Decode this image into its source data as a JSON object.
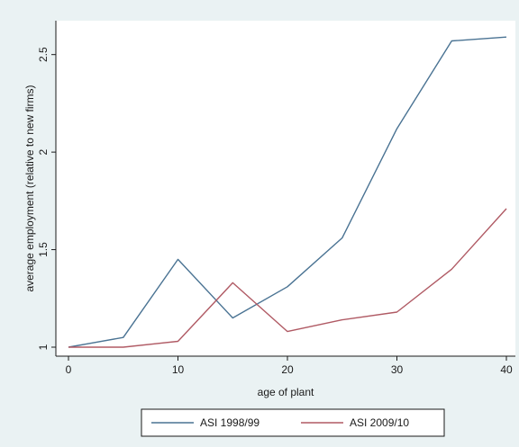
{
  "chart_data": {
    "type": "line",
    "title": "",
    "xlabel": "age of plant",
    "ylabel": "average employment (relative to new firms)",
    "xlim": [
      0,
      40
    ],
    "ylim": [
      1,
      2.6
    ],
    "xticks": [
      0,
      10,
      20,
      30,
      40
    ],
    "yticks": [
      1,
      1.5,
      2,
      2.5
    ],
    "ytick_labels": [
      "1",
      "1.5",
      "2",
      "2.5"
    ],
    "grid": false,
    "legend_position": "bottom",
    "x": [
      0,
      5,
      10,
      15,
      20,
      25,
      30,
      35,
      40
    ],
    "series": [
      {
        "name": "ASI 1998/99",
        "color": "#4a7393",
        "values": [
          1.0,
          1.05,
          1.45,
          1.15,
          1.31,
          1.56,
          2.12,
          2.57,
          2.59
        ]
      },
      {
        "name": "ASI 2009/10",
        "color": "#b05a64",
        "values": [
          1.0,
          1.0,
          1.03,
          1.33,
          1.08,
          1.14,
          1.18,
          1.4,
          1.71
        ]
      }
    ]
  },
  "colors": {
    "background": "#eaf2f3",
    "plot_background": "#ffffff",
    "axis": "#1a1a1a"
  }
}
